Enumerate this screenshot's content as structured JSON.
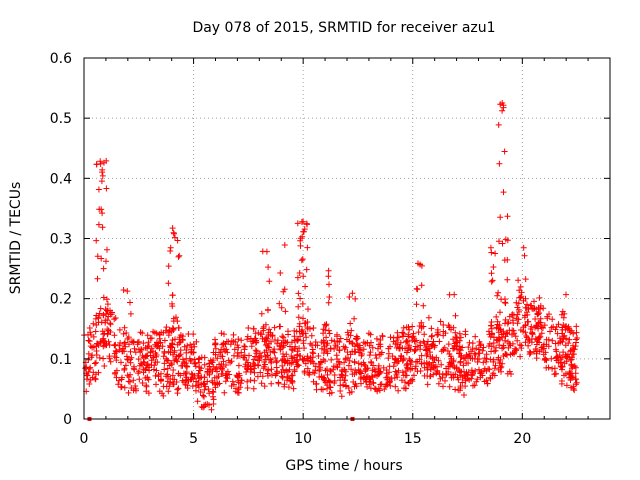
{
  "chart_data": {
    "type": "scatter",
    "title": "Day 078 of 2015, SRMTID for receiver azu1",
    "xlabel": "GPS time / hours",
    "ylabel": "SRMTID / TECUs",
    "xlim": [
      0,
      24
    ],
    "ylim": [
      0,
      0.6
    ],
    "xticks": [
      0,
      5,
      10,
      15,
      20
    ],
    "yticks": [
      0,
      0.1,
      0.2,
      0.3,
      0.4,
      0.5,
      0.6
    ],
    "xtick_labels": [
      "0",
      "5",
      "10",
      "15",
      "20"
    ],
    "ytick_labels": [
      "0",
      "0.1",
      "0.2",
      "0.3",
      "0.4",
      "0.5",
      "0.6"
    ],
    "grid": true,
    "marker": "+",
    "series_color": "#ff0000",
    "x_range_of_points": [
      0,
      22.5
    ],
    "features": [
      {
        "x": 0.8,
        "y": 0.43,
        "note": "early peak"
      },
      {
        "x": 4.1,
        "y": 0.32,
        "note": "small spike"
      },
      {
        "x": 10.0,
        "y": 0.33,
        "note": "peak near 10 h"
      },
      {
        "x": 19.1,
        "y": 0.53,
        "note": "maximum near 19 h"
      }
    ],
    "zero_markers": [
      0.25,
      12.25
    ]
  }
}
